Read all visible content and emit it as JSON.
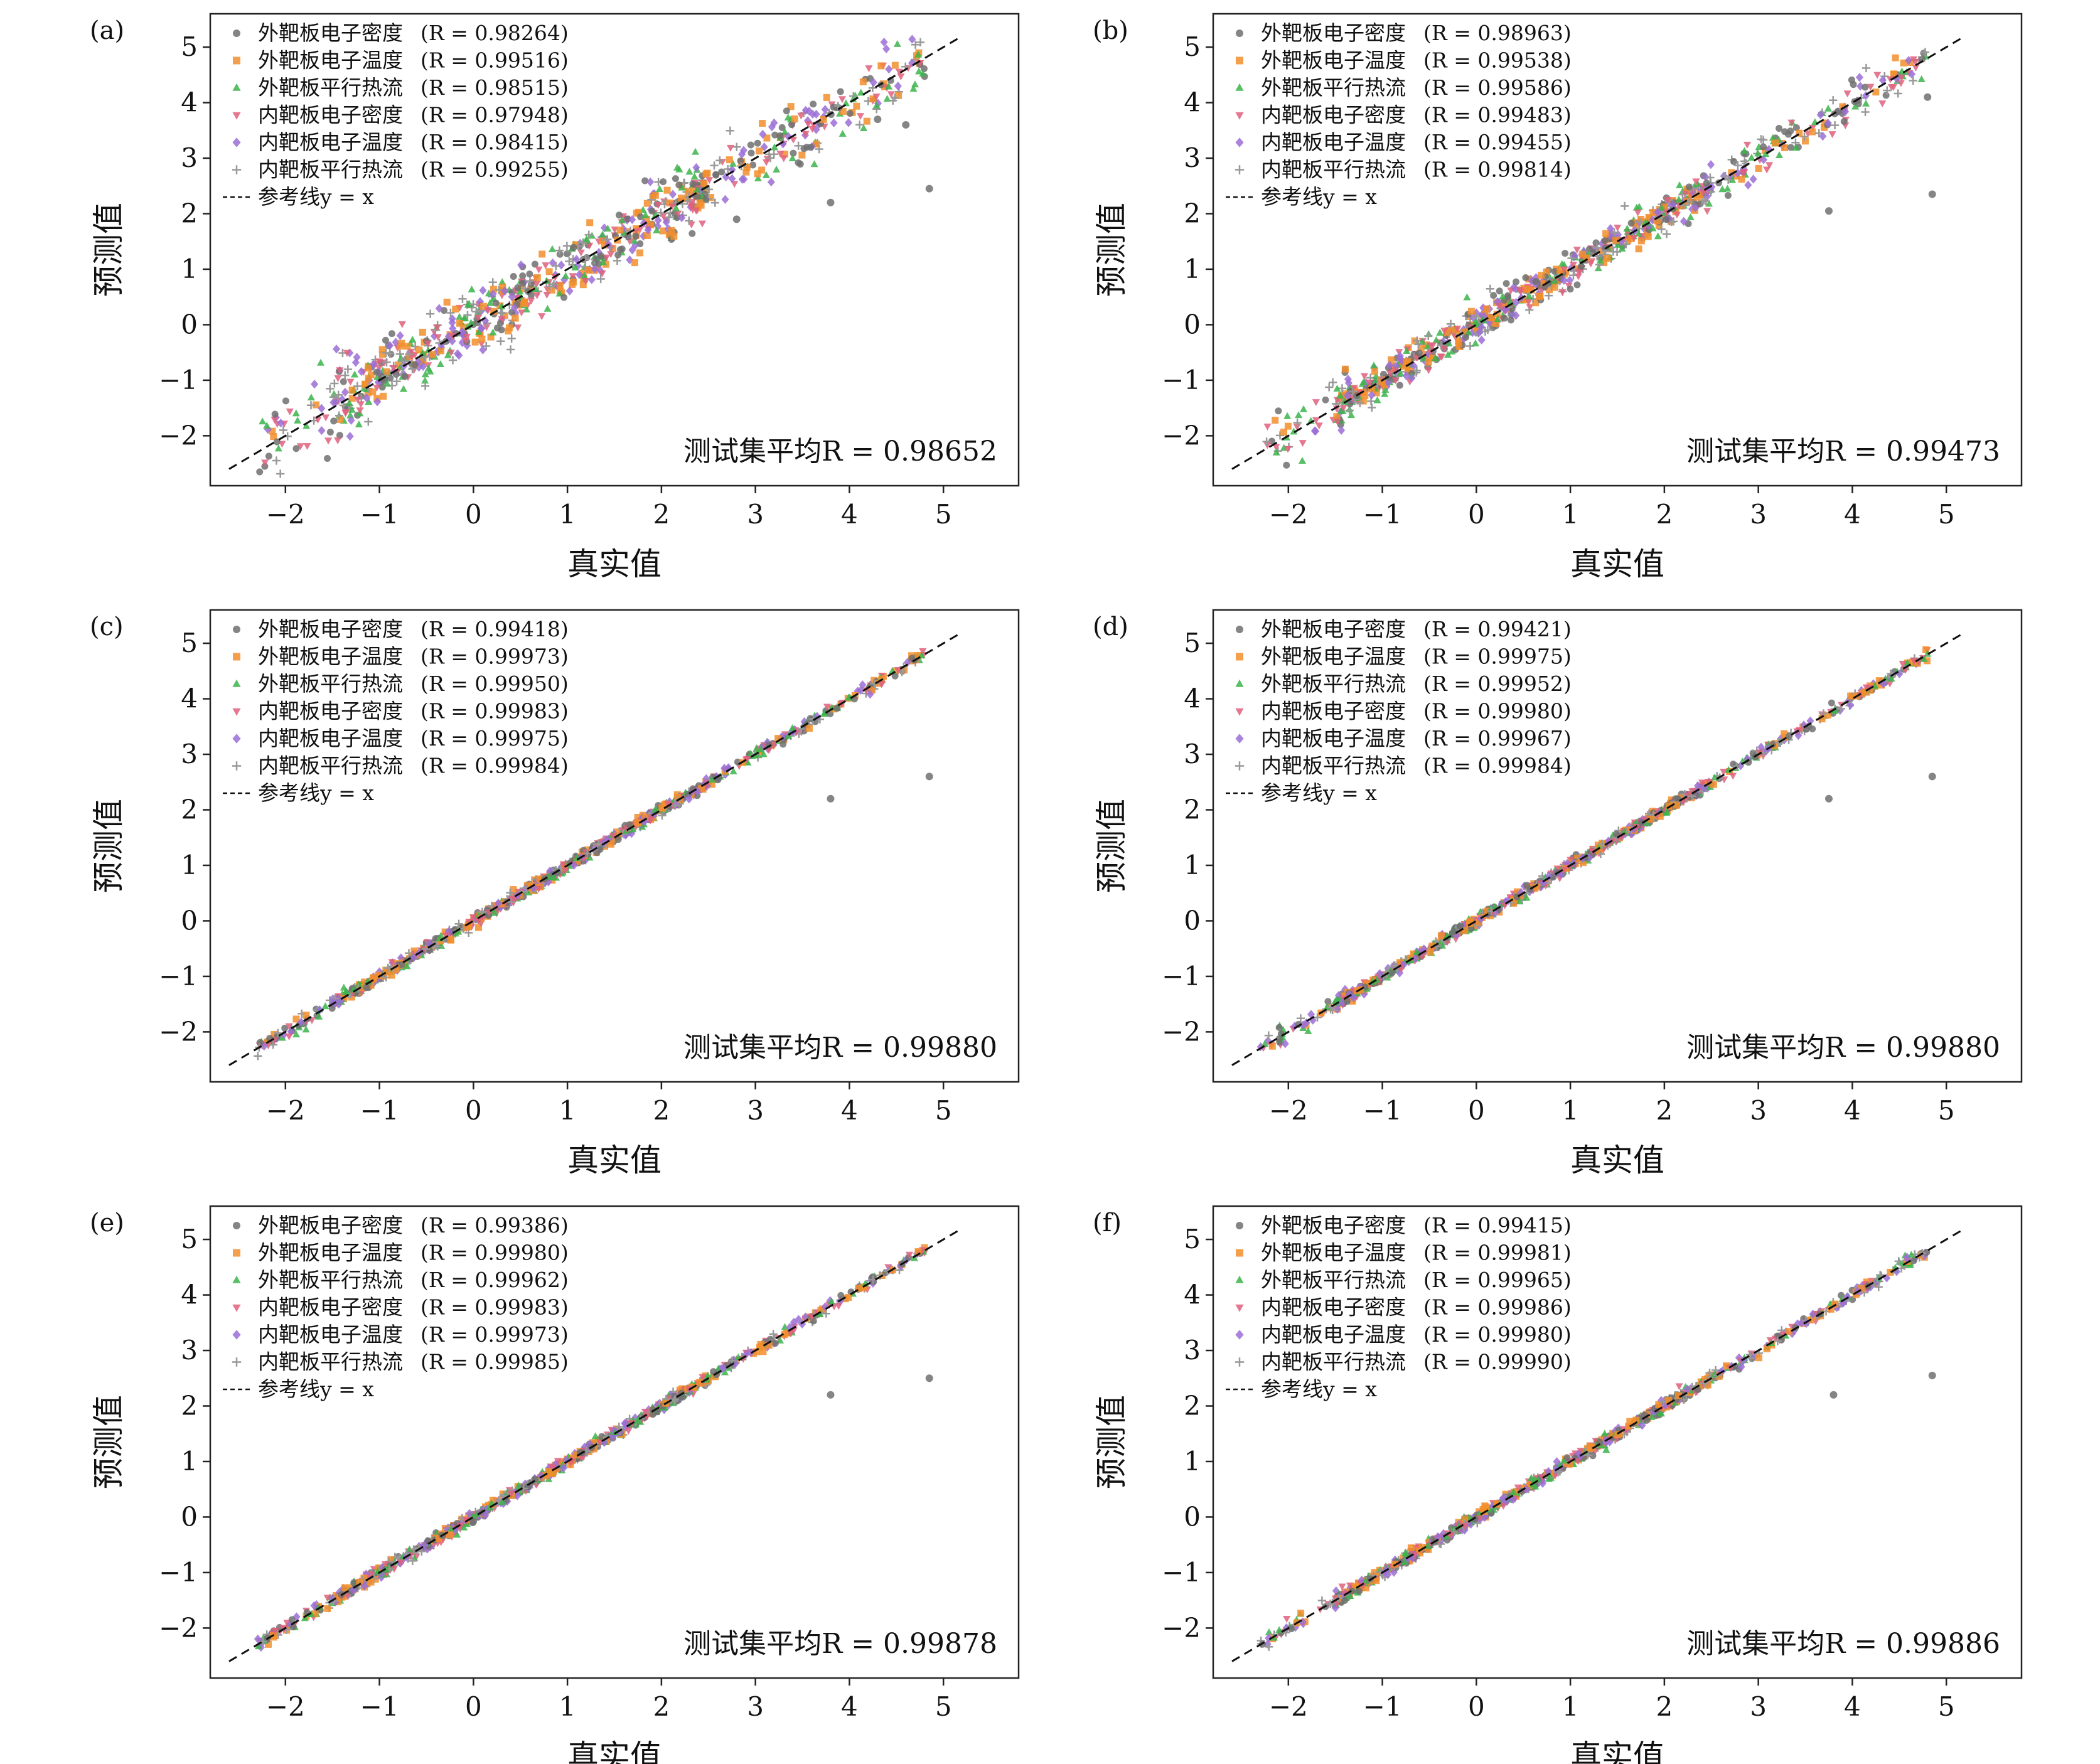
{
  "figure": {
    "series_styles": [
      {
        "color": "#707070",
        "marker": "circle"
      },
      {
        "color": "#f28e2b",
        "marker": "square"
      },
      {
        "color": "#3cb44b",
        "marker": "triangle-up"
      },
      {
        "color": "#e0607e",
        "marker": "triangle-down"
      },
      {
        "color": "#9b6fd6",
        "marker": "diamond"
      },
      {
        "color": "#999999",
        "marker": "plus"
      }
    ]
  },
  "chart_data": [
    {
      "type": "scatter",
      "panel_label": "(a)",
      "xlabel": "真实值",
      "ylabel": "预测值",
      "xlim": [
        -2.8,
        5.8
      ],
      "ylim": [
        -2.9,
        5.6
      ],
      "xticks": [
        -2,
        -1,
        0,
        1,
        2,
        3,
        4,
        5
      ],
      "yticks": [
        -2,
        -1,
        0,
        1,
        2,
        3,
        4,
        5
      ],
      "xtick_labels": [
        "−2",
        "−1",
        "0",
        "1",
        "2",
        "3",
        "4",
        "5"
      ],
      "ytick_labels": [
        "−2",
        "−1",
        "0",
        "1",
        "2",
        "3",
        "4",
        "5"
      ],
      "grid": false,
      "legend_position": "top-left",
      "series": [
        {
          "name": "外靶板电子密度",
          "r_label": "(R = 0.98264)"
        },
        {
          "name": "外靶板电子温度",
          "r_label": "(R = 0.99516)"
        },
        {
          "name": "外靶板平行热流",
          "r_label": "(R = 0.98515)"
        },
        {
          "name": "内靶板电子密度",
          "r_label": "(R = 0.97948)"
        },
        {
          "name": "内靶板电子温度",
          "r_label": "(R = 0.98415)"
        },
        {
          "name": "内靶板平行热流",
          "r_label": "(R = 0.99255)"
        }
      ],
      "reference_line": {
        "name": "参考线y = x",
        "x": [
          -2.6,
          5.2
        ],
        "y": [
          -2.6,
          5.2
        ]
      },
      "annotation": "测试集平均R = 0.98652",
      "spread": 0.28,
      "outliers": [
        [
          4.85,
          2.45
        ],
        [
          3.8,
          2.2
        ],
        [
          4.6,
          3.6
        ],
        [
          4.3,
          3.7
        ],
        [
          2.8,
          1.9
        ]
      ]
    },
    {
      "type": "scatter",
      "panel_label": "(b)",
      "xlabel": "真实值",
      "ylabel": "预测值",
      "xlim": [
        -2.8,
        5.8
      ],
      "ylim": [
        -2.9,
        5.6
      ],
      "xticks": [
        -2,
        -1,
        0,
        1,
        2,
        3,
        4,
        5
      ],
      "yticks": [
        -2,
        -1,
        0,
        1,
        2,
        3,
        4,
        5
      ],
      "xtick_labels": [
        "−2",
        "−1",
        "0",
        "1",
        "2",
        "3",
        "4",
        "5"
      ],
      "ytick_labels": [
        "−2",
        "−1",
        "0",
        "1",
        "2",
        "3",
        "4",
        "5"
      ],
      "grid": false,
      "legend_position": "top-left",
      "series": [
        {
          "name": "外靶板电子密度",
          "r_label": "(R = 0.98963)"
        },
        {
          "name": "外靶板电子温度",
          "r_label": "(R = 0.99538)"
        },
        {
          "name": "外靶板平行热流",
          "r_label": "(R = 0.99586)"
        },
        {
          "name": "内靶板电子密度",
          "r_label": "(R = 0.99483)"
        },
        {
          "name": "内靶板电子温度",
          "r_label": "(R = 0.99455)"
        },
        {
          "name": "内靶板平行热流",
          "r_label": "(R = 0.99814)"
        }
      ],
      "reference_line": {
        "name": "参考线y = x",
        "x": [
          -2.6,
          5.2
        ],
        "y": [
          -2.6,
          5.2
        ]
      },
      "annotation": "测试集平均R = 0.99473",
      "spread": 0.16,
      "outliers": [
        [
          4.85,
          2.35
        ],
        [
          3.75,
          2.05
        ],
        [
          4.8,
          4.1
        ]
      ]
    },
    {
      "type": "scatter",
      "panel_label": "(c)",
      "xlabel": "真实值",
      "ylabel": "预测值",
      "xlim": [
        -2.8,
        5.8
      ],
      "ylim": [
        -2.9,
        5.6
      ],
      "xticks": [
        -2,
        -1,
        0,
        1,
        2,
        3,
        4,
        5
      ],
      "yticks": [
        -2,
        -1,
        0,
        1,
        2,
        3,
        4,
        5
      ],
      "xtick_labels": [
        "−2",
        "−1",
        "0",
        "1",
        "2",
        "3",
        "4",
        "5"
      ],
      "ytick_labels": [
        "−2",
        "−1",
        "0",
        "1",
        "2",
        "3",
        "4",
        "5"
      ],
      "grid": false,
      "legend_position": "top-left",
      "series": [
        {
          "name": "外靶板电子密度",
          "r_label": "(R = 0.99418)"
        },
        {
          "name": "外靶板电子温度",
          "r_label": "(R = 0.99973)"
        },
        {
          "name": "外靶板平行热流",
          "r_label": "(R = 0.99950)"
        },
        {
          "name": "内靶板电子密度",
          "r_label": "(R = 0.99983)"
        },
        {
          "name": "内靶板电子温度",
          "r_label": "(R = 0.99975)"
        },
        {
          "name": "内靶板平行热流",
          "r_label": "(R = 0.99984)"
        }
      ],
      "reference_line": {
        "name": "参考线y = x",
        "x": [
          -2.6,
          5.2
        ],
        "y": [
          -2.6,
          5.2
        ]
      },
      "annotation": "测试集平均R = 0.99880",
      "spread": 0.05,
      "outliers": [
        [
          4.85,
          2.6
        ],
        [
          3.8,
          2.2
        ]
      ]
    },
    {
      "type": "scatter",
      "panel_label": "(d)",
      "xlabel": "真实值",
      "ylabel": "预测值",
      "xlim": [
        -2.8,
        5.8
      ],
      "ylim": [
        -2.9,
        5.6
      ],
      "xticks": [
        -2,
        -1,
        0,
        1,
        2,
        3,
        4,
        5
      ],
      "yticks": [
        -2,
        -1,
        0,
        1,
        2,
        3,
        4,
        5
      ],
      "xtick_labels": [
        "−2",
        "−1",
        "0",
        "1",
        "2",
        "3",
        "4",
        "5"
      ],
      "ytick_labels": [
        "−2",
        "−1",
        "0",
        "1",
        "2",
        "3",
        "4",
        "5"
      ],
      "grid": false,
      "legend_position": "top-left",
      "series": [
        {
          "name": "外靶板电子密度",
          "r_label": "(R = 0.99421)"
        },
        {
          "name": "外靶板电子温度",
          "r_label": "(R = 0.99975)"
        },
        {
          "name": "外靶板平行热流",
          "r_label": "(R = 0.99952)"
        },
        {
          "name": "内靶板电子密度",
          "r_label": "(R = 0.99980)"
        },
        {
          "name": "内靶板电子温度",
          "r_label": "(R = 0.99967)"
        },
        {
          "name": "内靶板平行热流",
          "r_label": "(R = 0.99984)"
        }
      ],
      "reference_line": {
        "name": "参考线y = x",
        "x": [
          -2.6,
          5.2
        ],
        "y": [
          -2.6,
          5.2
        ]
      },
      "annotation": "测试集平均R = 0.99880",
      "spread": 0.05,
      "outliers": [
        [
          4.85,
          2.6
        ],
        [
          3.75,
          2.2
        ]
      ]
    },
    {
      "type": "scatter",
      "panel_label": "(e)",
      "xlabel": "真实值",
      "ylabel": "预测值",
      "xlim": [
        -2.8,
        5.8
      ],
      "ylim": [
        -2.9,
        5.6
      ],
      "xticks": [
        -2,
        -1,
        0,
        1,
        2,
        3,
        4,
        5
      ],
      "yticks": [
        -2,
        -1,
        0,
        1,
        2,
        3,
        4,
        5
      ],
      "xtick_labels": [
        "−2",
        "−1",
        "0",
        "1",
        "2",
        "3",
        "4",
        "5"
      ],
      "ytick_labels": [
        "−2",
        "−1",
        "0",
        "1",
        "2",
        "3",
        "4",
        "5"
      ],
      "grid": false,
      "legend_position": "top-left",
      "series": [
        {
          "name": "外靶板电子密度",
          "r_label": "(R = 0.99386)"
        },
        {
          "name": "外靶板电子温度",
          "r_label": "(R = 0.99980)"
        },
        {
          "name": "外靶板平行热流",
          "r_label": "(R = 0.99962)"
        },
        {
          "name": "内靶板电子密度",
          "r_label": "(R = 0.99983)"
        },
        {
          "name": "内靶板电子温度",
          "r_label": "(R = 0.99973)"
        },
        {
          "name": "内靶板平行热流",
          "r_label": "(R = 0.99985)"
        }
      ],
      "reference_line": {
        "name": "参考线y = x",
        "x": [
          -2.6,
          5.2
        ],
        "y": [
          -2.6,
          5.2
        ]
      },
      "annotation": "测试集平均R = 0.99878",
      "spread": 0.05,
      "outliers": [
        [
          4.85,
          2.5
        ],
        [
          3.8,
          2.2
        ]
      ]
    },
    {
      "type": "scatter",
      "panel_label": "(f)",
      "xlabel": "真实值",
      "ylabel": "预测值",
      "xlim": [
        -2.8,
        5.8
      ],
      "ylim": [
        -2.9,
        5.6
      ],
      "xticks": [
        -2,
        -1,
        0,
        1,
        2,
        3,
        4,
        5
      ],
      "yticks": [
        -2,
        -1,
        0,
        1,
        2,
        3,
        4,
        5
      ],
      "xtick_labels": [
        "−2",
        "−1",
        "0",
        "1",
        "2",
        "3",
        "4",
        "5"
      ],
      "ytick_labels": [
        "−2",
        "−1",
        "0",
        "1",
        "2",
        "3",
        "4",
        "5"
      ],
      "grid": false,
      "legend_position": "top-left",
      "series": [
        {
          "name": "外靶板电子密度",
          "r_label": "(R = 0.99415)"
        },
        {
          "name": "外靶板电子温度",
          "r_label": "(R = 0.99981)"
        },
        {
          "name": "外靶板平行热流",
          "r_label": "(R = 0.99965)"
        },
        {
          "name": "内靶板电子密度",
          "r_label": "(R = 0.99986)"
        },
        {
          "name": "内靶板电子温度",
          "r_label": "(R = 0.99980)"
        },
        {
          "name": "内靶板平行热流",
          "r_label": "(R = 0.99990)"
        }
      ],
      "reference_line": {
        "name": "参考线y = x",
        "x": [
          -2.6,
          5.2
        ],
        "y": [
          -2.6,
          5.2
        ]
      },
      "annotation": "测试集平均R = 0.99886",
      "spread": 0.05,
      "outliers": [
        [
          4.85,
          2.55
        ],
        [
          3.8,
          2.2
        ]
      ]
    }
  ]
}
